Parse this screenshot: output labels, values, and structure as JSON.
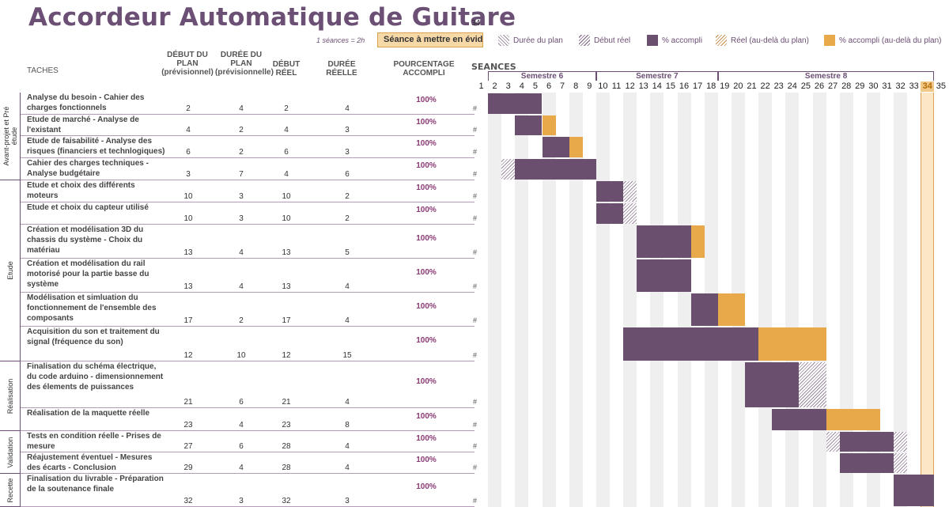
{
  "title": "Accordeur Automatique de Guitare",
  "current_session": "34",
  "sessions_note": "1 séances = 2h",
  "current_label": "Séance à mettre en évidence",
  "current_value": "34",
  "legend": [
    "Durée du plan",
    "Début réel",
    "% accompli",
    "Réel (au-delà du plan)",
    "% accompli (au-delà du plan)"
  ],
  "headers": {
    "taches": "TACHES",
    "debut_plan": "DÉBUT DU PLAN (prévisionnel)",
    "duree_plan": "DURÉE DU PLAN (prévisionnelle)",
    "debut_reel": "DÉBUT RÉEL",
    "duree_reelle": "DURÉE RÉELLE",
    "pourcentage": "POURCENTAGE ACCOMPLI",
    "seances": "SEANCES"
  },
  "semesters": [
    {
      "label": "Semestre 6",
      "from": 2,
      "to": 9
    },
    {
      "label": "Semestre 7",
      "from": 10,
      "to": 18
    },
    {
      "label": "Semestre 8",
      "from": 19,
      "to": 34
    }
  ],
  "columns": [
    1,
    2,
    3,
    4,
    5,
    6,
    7,
    8,
    9,
    10,
    11,
    12,
    13,
    14,
    15,
    16,
    17,
    18,
    19,
    20,
    21,
    22,
    23,
    24,
    25,
    26,
    27,
    28,
    29,
    30,
    31,
    32,
    33,
    34,
    35
  ],
  "phases": [
    {
      "label": "Avant-projet et Pré étude"
    },
    {
      "label": "Etude"
    },
    {
      "label": "Réalisation"
    },
    {
      "label": "Validation"
    },
    {
      "label": "Recette"
    }
  ],
  "tasks": [
    {
      "name": "Analyse du besoin - Cahier des charges fonctionnels",
      "debut_plan": 2,
      "duree_plan": 4,
      "debut_reel": 2,
      "duree_reelle": 4,
      "pct": "100%"
    },
    {
      "name": "Etude de marché - Analyse de l'existant",
      "debut_plan": 4,
      "duree_plan": 2,
      "debut_reel": 4,
      "duree_reelle": 3,
      "pct": "100%"
    },
    {
      "name": "Etude de faisabilité - Analyse des risques (financiers et technlogiques)",
      "debut_plan": 6,
      "duree_plan": 2,
      "debut_reel": 6,
      "duree_reelle": 3,
      "pct": "100%"
    },
    {
      "name": "Cahier des charges techniques - Analyse budgétaire",
      "debut_plan": 3,
      "duree_plan": 7,
      "debut_reel": 4,
      "duree_reelle": 6,
      "pct": "100%"
    },
    {
      "name": "Etude et choix des différents moteurs",
      "debut_plan": 10,
      "duree_plan": 3,
      "debut_reel": 10,
      "duree_reelle": 2,
      "pct": "100%"
    },
    {
      "name": "Etude et choix du capteur utilisé",
      "debut_plan": 10,
      "duree_plan": 3,
      "debut_reel": 10,
      "duree_reelle": 2,
      "pct": "100%"
    },
    {
      "name": "Création et modélisation 3D du chassis du système - Choix du matériau",
      "debut_plan": 13,
      "duree_plan": 4,
      "debut_reel": 13,
      "duree_reelle": 5,
      "pct": "100%"
    },
    {
      "name": "Création et modélisation du rail motorisé pour la partie basse du système",
      "debut_plan": 13,
      "duree_plan": 4,
      "debut_reel": 13,
      "duree_reelle": 4,
      "pct": "100%"
    },
    {
      "name": "Modélisation et simluation du fonctionnement de l'ensemble des composants",
      "debut_plan": 17,
      "duree_plan": 2,
      "debut_reel": 17,
      "duree_reelle": 4,
      "pct": "100%"
    },
    {
      "name": "Acquisition du son et traitement du signal (fréquence du son)",
      "debut_plan": 12,
      "duree_plan": 10,
      "debut_reel": 12,
      "duree_reelle": 15,
      "pct": "100%"
    },
    {
      "name": "Finalisation du schéma électrique, du code arduino - dimensionnement des élements de puissances",
      "debut_plan": 21,
      "duree_plan": 6,
      "debut_reel": 21,
      "duree_reelle": 4,
      "pct": "100%"
    },
    {
      "name": "Réalisation de la maquette réelle",
      "debut_plan": 23,
      "duree_plan": 4,
      "debut_reel": 23,
      "duree_reelle": 8,
      "pct": "100%"
    },
    {
      "name": "Tests en condition réelle - Prises de mesure",
      "debut_plan": 27,
      "duree_plan": 6,
      "debut_reel": 28,
      "duree_reelle": 4,
      "pct": "100%"
    },
    {
      "name": "Réajustement éventuel - Mesures des écarts - Conclusion",
      "debut_plan": 29,
      "duree_plan": 4,
      "debut_reel": 28,
      "duree_reelle": 4,
      "pct": "100%"
    },
    {
      "name": "Finalisation du livrable - Préparation de la soutenance finale",
      "debut_plan": 32,
      "duree_plan": 3,
      "debut_reel": 32,
      "duree_reelle": 3,
      "pct": "100%"
    }
  ],
  "row_hash": "#",
  "colors": {
    "accent": "#6b4f74",
    "accompli": "#6b4f6f",
    "beyond": "#e8a94a",
    "current_col": "#fbe6c5"
  }
}
